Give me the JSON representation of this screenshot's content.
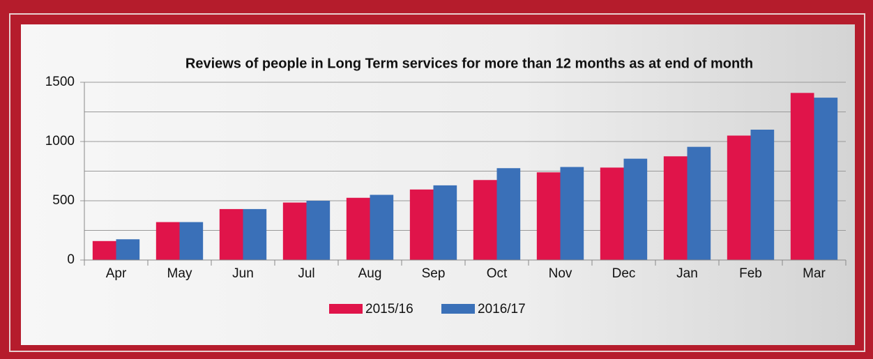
{
  "chart_data": {
    "type": "bar",
    "title": "Reviews of people in Long Term services for more than 12 months as at end of month",
    "categories": [
      "Apr",
      "May",
      "Jun",
      "Jul",
      "Aug",
      "Sep",
      "Oct",
      "Nov",
      "Dec",
      "Jan",
      "Feb",
      "Mar"
    ],
    "series": [
      {
        "name": "2015/16",
        "color": "#e0144a",
        "values": [
          160,
          320,
          430,
          485,
          525,
          595,
          675,
          740,
          780,
          875,
          1050,
          1410
        ]
      },
      {
        "name": "2016/17",
        "color": "#3a70b8",
        "values": [
          175,
          320,
          430,
          500,
          550,
          630,
          775,
          785,
          855,
          955,
          1100,
          1370
        ]
      }
    ],
    "ylim": [
      0,
      1500
    ],
    "yticks": [
      0,
      500,
      1000,
      1500
    ],
    "y_minor_ticks": [
      250,
      750,
      1250
    ],
    "grid": true,
    "legend": "bottom"
  }
}
